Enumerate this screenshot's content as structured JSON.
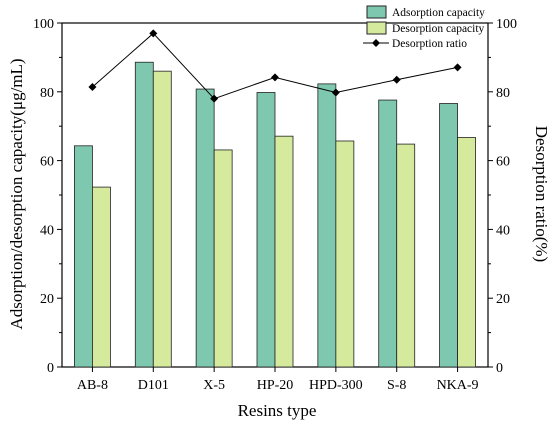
{
  "colors": {
    "adsorption": "#7fc8b0",
    "desorption": "#d6ea9e",
    "ratio": "#000000",
    "bar_stroke": "#222222"
  },
  "chart_data": {
    "type": "bar",
    "xlabel": "Resins type",
    "ylabel": "Adsorption/desorption capacity(μg/mL)",
    "y2label": "Desorption ratio(%)",
    "ylim": [
      0,
      100
    ],
    "y2lim": [
      0,
      100
    ],
    "yticks": [
      "0",
      "20",
      "40",
      "60",
      "80",
      "100"
    ],
    "y2ticks": [
      "0",
      "20",
      "40",
      "60",
      "80",
      "100"
    ],
    "categories": [
      "AB-8",
      "D101",
      "X-5",
      "HP-20",
      "HPD-300",
      "S-8",
      "NKA-9"
    ],
    "legend_position": "top-right",
    "grid": false,
    "series": [
      {
        "name": "Adsorption capacity",
        "type": "bar",
        "axis": "left",
        "values": [
          64.3,
          88.6,
          80.8,
          79.8,
          82.3,
          77.6,
          76.6
        ]
      },
      {
        "name": "Desorption capacity",
        "type": "bar",
        "axis": "left",
        "values": [
          52.3,
          86.0,
          63.1,
          67.1,
          65.7,
          64.8,
          66.7
        ]
      },
      {
        "name": "Desorption ratio",
        "type": "line",
        "axis": "right",
        "marker": "diamond",
        "values": [
          81.4,
          97.0,
          78.0,
          84.2,
          79.8,
          83.5,
          87.1
        ]
      }
    ]
  }
}
